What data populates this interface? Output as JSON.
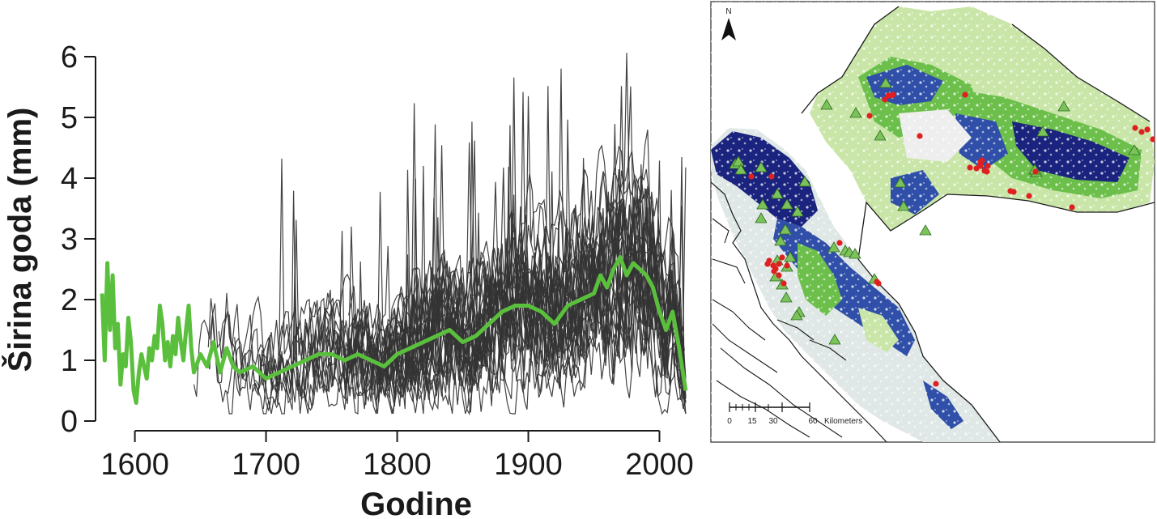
{
  "chart_data": [
    {
      "type": "line",
      "title": "",
      "xlabel": "Godine",
      "ylabel": "Širina goda (mm)",
      "xlim": [
        1570,
        2025
      ],
      "ylim": [
        0,
        6
      ],
      "xticks": [
        1600,
        1700,
        1800,
        1900,
        2000
      ],
      "yticks": [
        0,
        1,
        2,
        3,
        4,
        5,
        6
      ],
      "grid": false,
      "legend": "none",
      "individual_series_color": "#333333",
      "individual_series_count": 30,
      "individual_series_x_range": [
        1640,
        2020
      ],
      "series": [
        {
          "color": "#5abf3c",
          "x": [
            1575,
            1577,
            1579,
            1581,
            1583,
            1585,
            1587,
            1589,
            1591,
            1593,
            1595,
            1597,
            1599,
            1601,
            1603,
            1605,
            1607,
            1609,
            1611,
            1613,
            1615,
            1617,
            1619,
            1621,
            1623,
            1625,
            1627,
            1629,
            1631,
            1633,
            1635,
            1637,
            1639,
            1641,
            1643,
            1645,
            1650,
            1655,
            1660,
            1665,
            1670,
            1675,
            1680,
            1690,
            1700,
            1710,
            1720,
            1730,
            1740,
            1750,
            1760,
            1770,
            1780,
            1790,
            1800,
            1810,
            1820,
            1830,
            1840,
            1850,
            1860,
            1870,
            1880,
            1890,
            1900,
            1910,
            1920,
            1930,
            1940,
            1950,
            1955,
            1960,
            1965,
            1970,
            1975,
            1980,
            1985,
            1990,
            1995,
            2000,
            2005,
            2010,
            2015,
            2020
          ],
          "y": [
            2.1,
            1.0,
            2.6,
            1.5,
            2.4,
            1.2,
            1.6,
            0.6,
            1.1,
            0.9,
            1.7,
            1.3,
            0.5,
            0.3,
            0.8,
            1.1,
            0.9,
            0.7,
            1.2,
            1.0,
            1.4,
            1.2,
            1.9,
            1.6,
            1.0,
            1.3,
            0.9,
            1.4,
            1.1,
            1.7,
            1.3,
            1.0,
            1.5,
            1.9,
            1.2,
            0.8,
            1.1,
            0.9,
            1.3,
            0.8,
            1.2,
            0.9,
            0.8,
            0.9,
            0.7,
            0.8,
            0.9,
            1.0,
            1.1,
            1.1,
            1.0,
            1.1,
            1.0,
            0.9,
            1.1,
            1.2,
            1.3,
            1.4,
            1.5,
            1.3,
            1.4,
            1.6,
            1.8,
            1.9,
            1.9,
            1.8,
            1.6,
            1.9,
            2.0,
            2.1,
            2.4,
            2.2,
            2.5,
            2.7,
            2.4,
            2.6,
            2.5,
            2.4,
            2.2,
            1.8,
            1.5,
            1.8,
            1.2,
            0.5
          ]
        }
      ]
    },
    {
      "type": "map",
      "colors": {
        "dark_blue": "#1a237e",
        "mid_blue": "#2f4fa8",
        "green": "#6cbf4a",
        "light_green": "#c9e6a8",
        "point_red": "#e02020",
        "triangle_green": "#7bc25a"
      },
      "north_label": "N",
      "scale_labels": [
        "0",
        "15",
        "30",
        "60"
      ],
      "scale_unit": "Kilometers",
      "triangle_count": 38,
      "red_point_count": 40
    }
  ]
}
